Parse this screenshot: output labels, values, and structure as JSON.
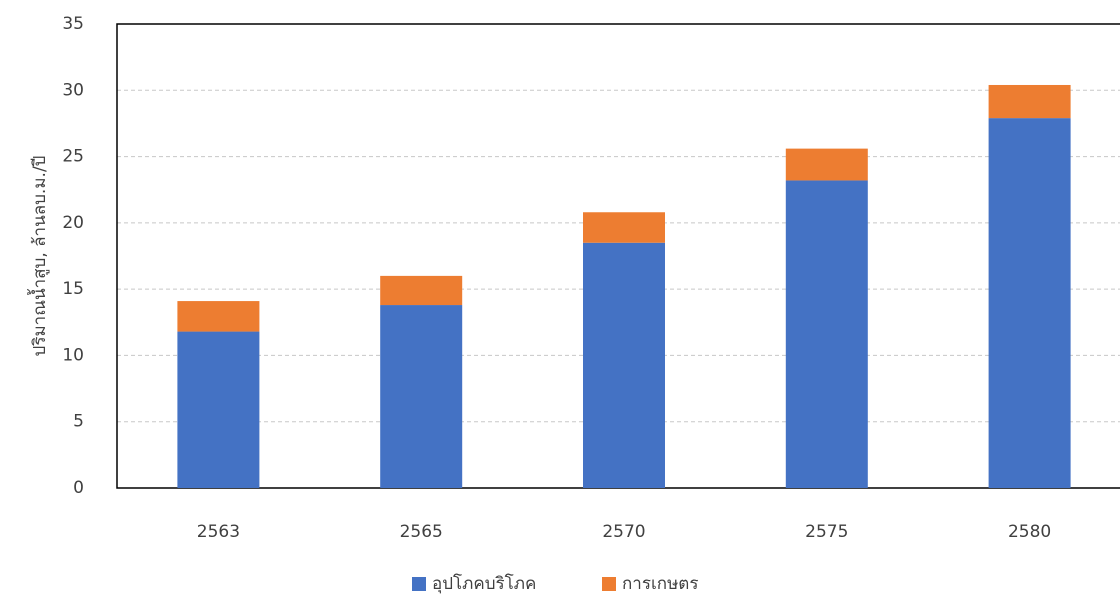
{
  "chart_data": {
    "type": "stacked_bar",
    "y_label": "ปริมาณน้ำสูบ, ล้านลบ.ม./ปี",
    "categories": [
      "2563",
      "2565",
      "2570",
      "2575",
      "2580"
    ],
    "series": [
      {
        "name": "อุปโภคบริโภค",
        "color": "#4472c4",
        "values": [
          11.8,
          13.8,
          18.5,
          23.2,
          27.9
        ]
      },
      {
        "name": "การเกษตร",
        "color": "#ed7d31",
        "values": [
          2.3,
          2.2,
          2.3,
          2.4,
          2.5
        ]
      }
    ],
    "ylim": [
      0,
      35
    ],
    "yticks": [
      0,
      5,
      10,
      15,
      20,
      25,
      30,
      35
    ],
    "grid": true
  }
}
